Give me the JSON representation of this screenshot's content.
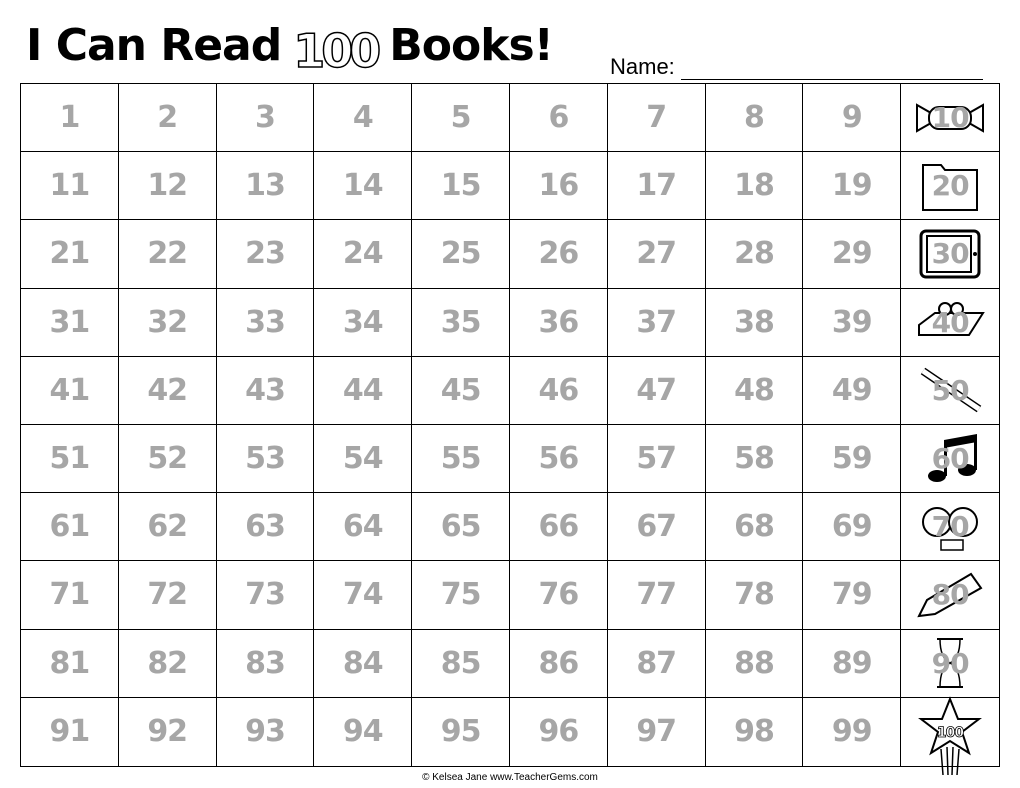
{
  "header": {
    "title_before": "I Can Read",
    "title_logo": "100",
    "title_after": "Books!",
    "name_label": "Name:"
  },
  "grid": {
    "number_color": "#a6a6a6",
    "rows": [
      [
        "1",
        "2",
        "3",
        "4",
        "5",
        "6",
        "7",
        "8",
        "9",
        "10"
      ],
      [
        "11",
        "12",
        "13",
        "14",
        "15",
        "16",
        "17",
        "18",
        "19",
        "20"
      ],
      [
        "21",
        "22",
        "23",
        "24",
        "25",
        "26",
        "27",
        "28",
        "29",
        "30"
      ],
      [
        "31",
        "32",
        "33",
        "34",
        "35",
        "36",
        "37",
        "38",
        "39",
        "40"
      ],
      [
        "41",
        "42",
        "43",
        "44",
        "45",
        "46",
        "47",
        "48",
        "49",
        "50"
      ],
      [
        "51",
        "52",
        "53",
        "54",
        "55",
        "56",
        "57",
        "58",
        "59",
        "60"
      ],
      [
        "61",
        "62",
        "63",
        "64",
        "65",
        "66",
        "67",
        "68",
        "69",
        "70"
      ],
      [
        "71",
        "72",
        "73",
        "74",
        "75",
        "76",
        "77",
        "78",
        "79",
        "80"
      ],
      [
        "81",
        "82",
        "83",
        "84",
        "85",
        "86",
        "87",
        "88",
        "89",
        "90"
      ],
      [
        "91",
        "92",
        "93",
        "94",
        "95",
        "96",
        "97",
        "98",
        "99",
        "100"
      ]
    ],
    "last_column_icons": [
      "candy-icon",
      "folder-icon",
      "tablet-icon",
      "eraser-icon",
      "pen-icon",
      "music-note-icon",
      "kids-faces-icon",
      "crayon-icon",
      "hourglass-icon",
      "shooting-star-icon"
    ]
  },
  "footer": {
    "credit": "© Kelsea Jane www.TeacherGems.com"
  }
}
